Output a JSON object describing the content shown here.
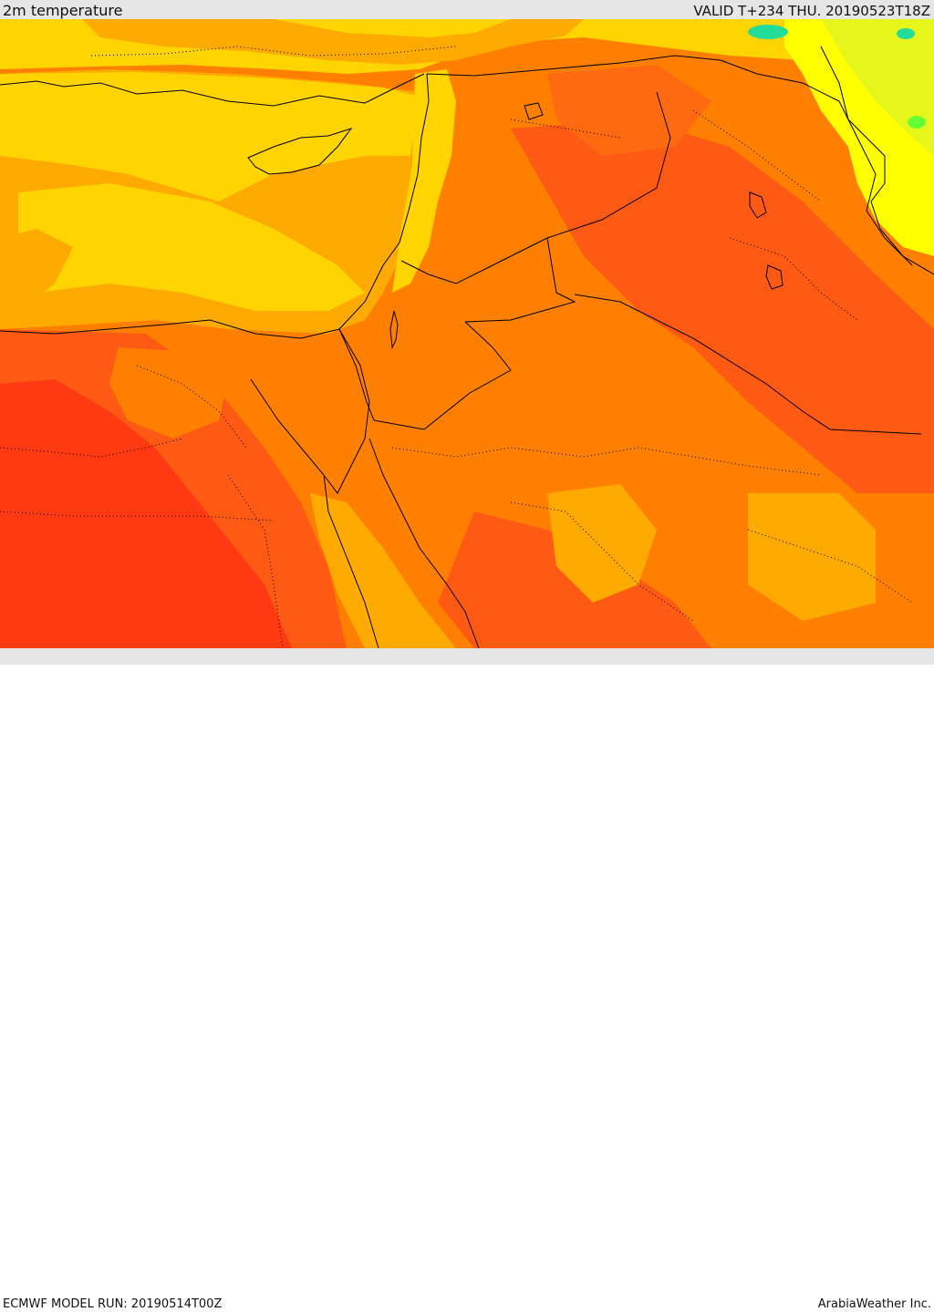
{
  "header": {
    "title": "2m temperature",
    "valid": "VALID T+234 THU. 20190523T18Z"
  },
  "footer": {
    "model_run": "ECMWF MODEL RUN: 20190514T00Z",
    "brand": "ArabiaWeather Inc."
  },
  "map": {
    "colors": {
      "cool_green": "#66ff33",
      "teal": "#22dd99",
      "lime": "#e6f51a",
      "yellow": "#ffff00",
      "gold": "#ffd400",
      "amber": "#ffaa00",
      "orange": "#ff8000",
      "dark_orange": "#ff5a14",
      "red_orange": "#ff3a12"
    }
  }
}
